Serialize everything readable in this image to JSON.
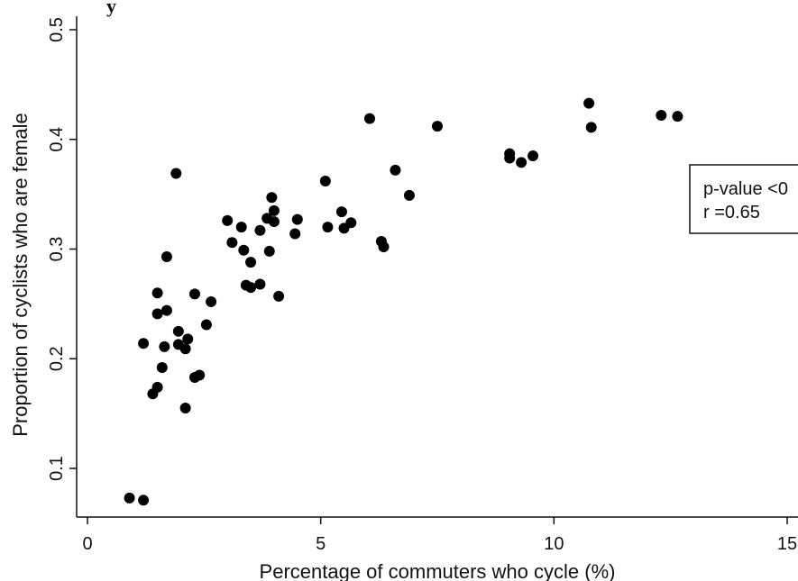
{
  "chart_data": {
    "type": "scatter",
    "title": "y",
    "xlabel": "Percentage of commuters who cycle (%)",
    "ylabel": "Proportion of cyclists who are female",
    "xlim": [
      0,
      15
    ],
    "ylim": [
      0.05,
      0.5
    ],
    "x_ticks": [
      0,
      5,
      10,
      15
    ],
    "x_tick_labels": [
      "0",
      "5",
      "10",
      "15"
    ],
    "y_ticks": [
      0.1,
      0.2,
      0.3,
      0.4,
      0.5
    ],
    "y_tick_labels": [
      "0.1",
      "0.2",
      "0.3",
      "0.4",
      "0.5"
    ],
    "grid": false,
    "annotation": {
      "lines": [
        "p-value <0",
        "r =0.65"
      ]
    },
    "points": [
      {
        "x": 0.9,
        "y": 0.073
      },
      {
        "x": 1.2,
        "y": 0.071
      },
      {
        "x": 1.2,
        "y": 0.214
      },
      {
        "x": 1.4,
        "y": 0.168
      },
      {
        "x": 1.5,
        "y": 0.174
      },
      {
        "x": 1.5,
        "y": 0.241
      },
      {
        "x": 1.5,
        "y": 0.26
      },
      {
        "x": 1.6,
        "y": 0.192
      },
      {
        "x": 1.65,
        "y": 0.211
      },
      {
        "x": 1.7,
        "y": 0.244
      },
      {
        "x": 1.7,
        "y": 0.293
      },
      {
        "x": 1.9,
        "y": 0.369
      },
      {
        "x": 1.95,
        "y": 0.213
      },
      {
        "x": 1.95,
        "y": 0.225
      },
      {
        "x": 2.1,
        "y": 0.155
      },
      {
        "x": 2.1,
        "y": 0.209
      },
      {
        "x": 2.15,
        "y": 0.218
      },
      {
        "x": 2.3,
        "y": 0.183
      },
      {
        "x": 2.3,
        "y": 0.259
      },
      {
        "x": 2.4,
        "y": 0.185
      },
      {
        "x": 2.55,
        "y": 0.231
      },
      {
        "x": 2.65,
        "y": 0.252
      },
      {
        "x": 3.0,
        "y": 0.326
      },
      {
        "x": 3.1,
        "y": 0.306
      },
      {
        "x": 3.3,
        "y": 0.32
      },
      {
        "x": 3.35,
        "y": 0.299
      },
      {
        "x": 3.4,
        "y": 0.267
      },
      {
        "x": 3.5,
        "y": 0.265
      },
      {
        "x": 3.5,
        "y": 0.288
      },
      {
        "x": 3.7,
        "y": 0.268
      },
      {
        "x": 3.7,
        "y": 0.317
      },
      {
        "x": 3.85,
        "y": 0.328
      },
      {
        "x": 3.9,
        "y": 0.298
      },
      {
        "x": 3.95,
        "y": 0.347
      },
      {
        "x": 4.0,
        "y": 0.335
      },
      {
        "x": 4.0,
        "y": 0.325
      },
      {
        "x": 4.1,
        "y": 0.257
      },
      {
        "x": 4.45,
        "y": 0.314
      },
      {
        "x": 4.5,
        "y": 0.327
      },
      {
        "x": 5.1,
        "y": 0.362
      },
      {
        "x": 5.15,
        "y": 0.32
      },
      {
        "x": 5.45,
        "y": 0.334
      },
      {
        "x": 5.5,
        "y": 0.319
      },
      {
        "x": 5.65,
        "y": 0.324
      },
      {
        "x": 6.05,
        "y": 0.419
      },
      {
        "x": 6.3,
        "y": 0.307
      },
      {
        "x": 6.35,
        "y": 0.302
      },
      {
        "x": 6.6,
        "y": 0.372
      },
      {
        "x": 6.9,
        "y": 0.349
      },
      {
        "x": 7.5,
        "y": 0.412
      },
      {
        "x": 9.05,
        "y": 0.383
      },
      {
        "x": 9.05,
        "y": 0.387
      },
      {
        "x": 9.3,
        "y": 0.379
      },
      {
        "x": 9.55,
        "y": 0.385
      },
      {
        "x": 10.75,
        "y": 0.433
      },
      {
        "x": 10.8,
        "y": 0.411
      },
      {
        "x": 12.3,
        "y": 0.422
      },
      {
        "x": 12.65,
        "y": 0.421
      }
    ]
  }
}
